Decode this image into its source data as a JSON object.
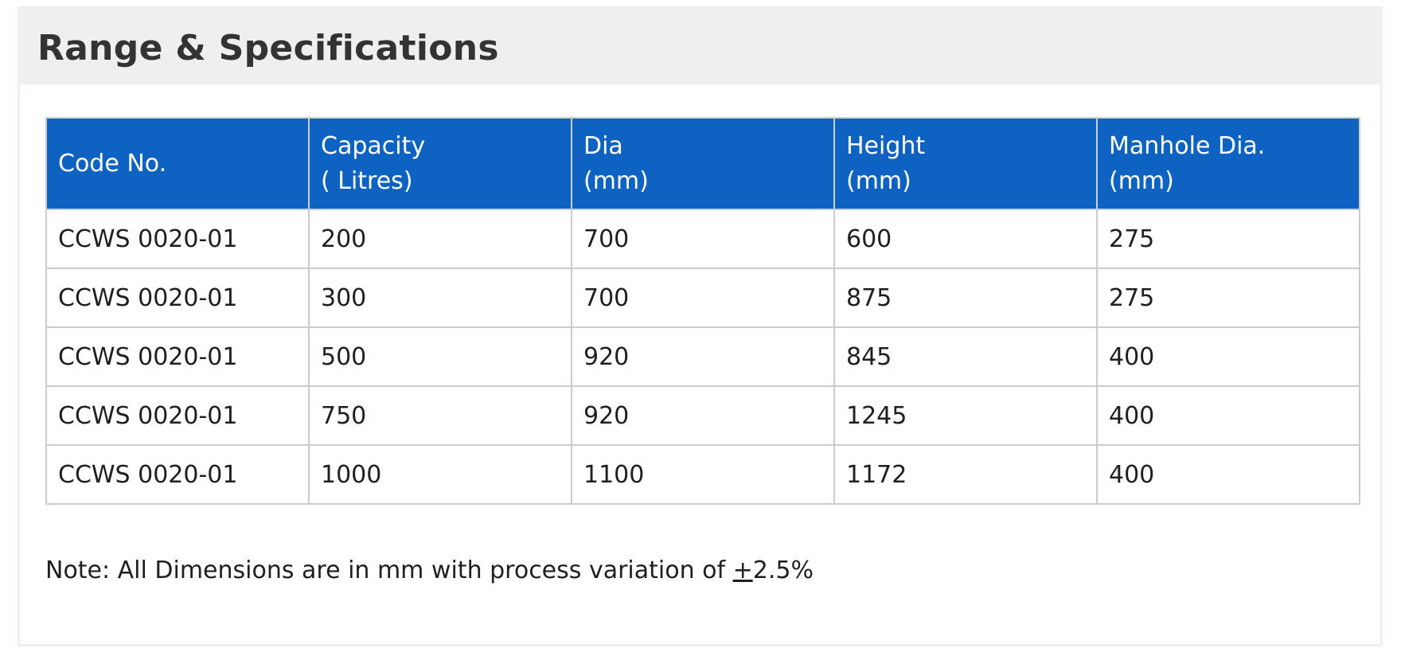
{
  "title": "Range & Specifications",
  "table": {
    "headers": [
      {
        "line1": "Code No.",
        "line2": ""
      },
      {
        "line1": "Capacity",
        "line2": "( Litres)"
      },
      {
        "line1": "Dia",
        "line2": "(mm)"
      },
      {
        "line1": "Height",
        "line2": "(mm)"
      },
      {
        "line1": "Manhole Dia.",
        "line2": "(mm)"
      }
    ],
    "rows": [
      [
        "CCWS 0020-01",
        "200",
        "700",
        "600",
        "275"
      ],
      [
        "CCWS 0020-01",
        "300",
        "700",
        "875",
        "275"
      ],
      [
        "CCWS 0020-01",
        "500",
        "920",
        "845",
        "400"
      ],
      [
        "CCWS 0020-01",
        "750",
        "920",
        "1245",
        "400"
      ],
      [
        "CCWS 0020-01",
        "1000",
        "1100",
        "1172",
        "400"
      ]
    ]
  },
  "note": {
    "prefix": "Note: All Dimensions are in mm with process variation of ",
    "symbol": "+",
    "suffix": "2.5%"
  },
  "colors": {
    "header_background": "#0e63c2",
    "header_text": "#ffffff",
    "panel_header_background": "#efefef",
    "border": "#cccccc"
  }
}
